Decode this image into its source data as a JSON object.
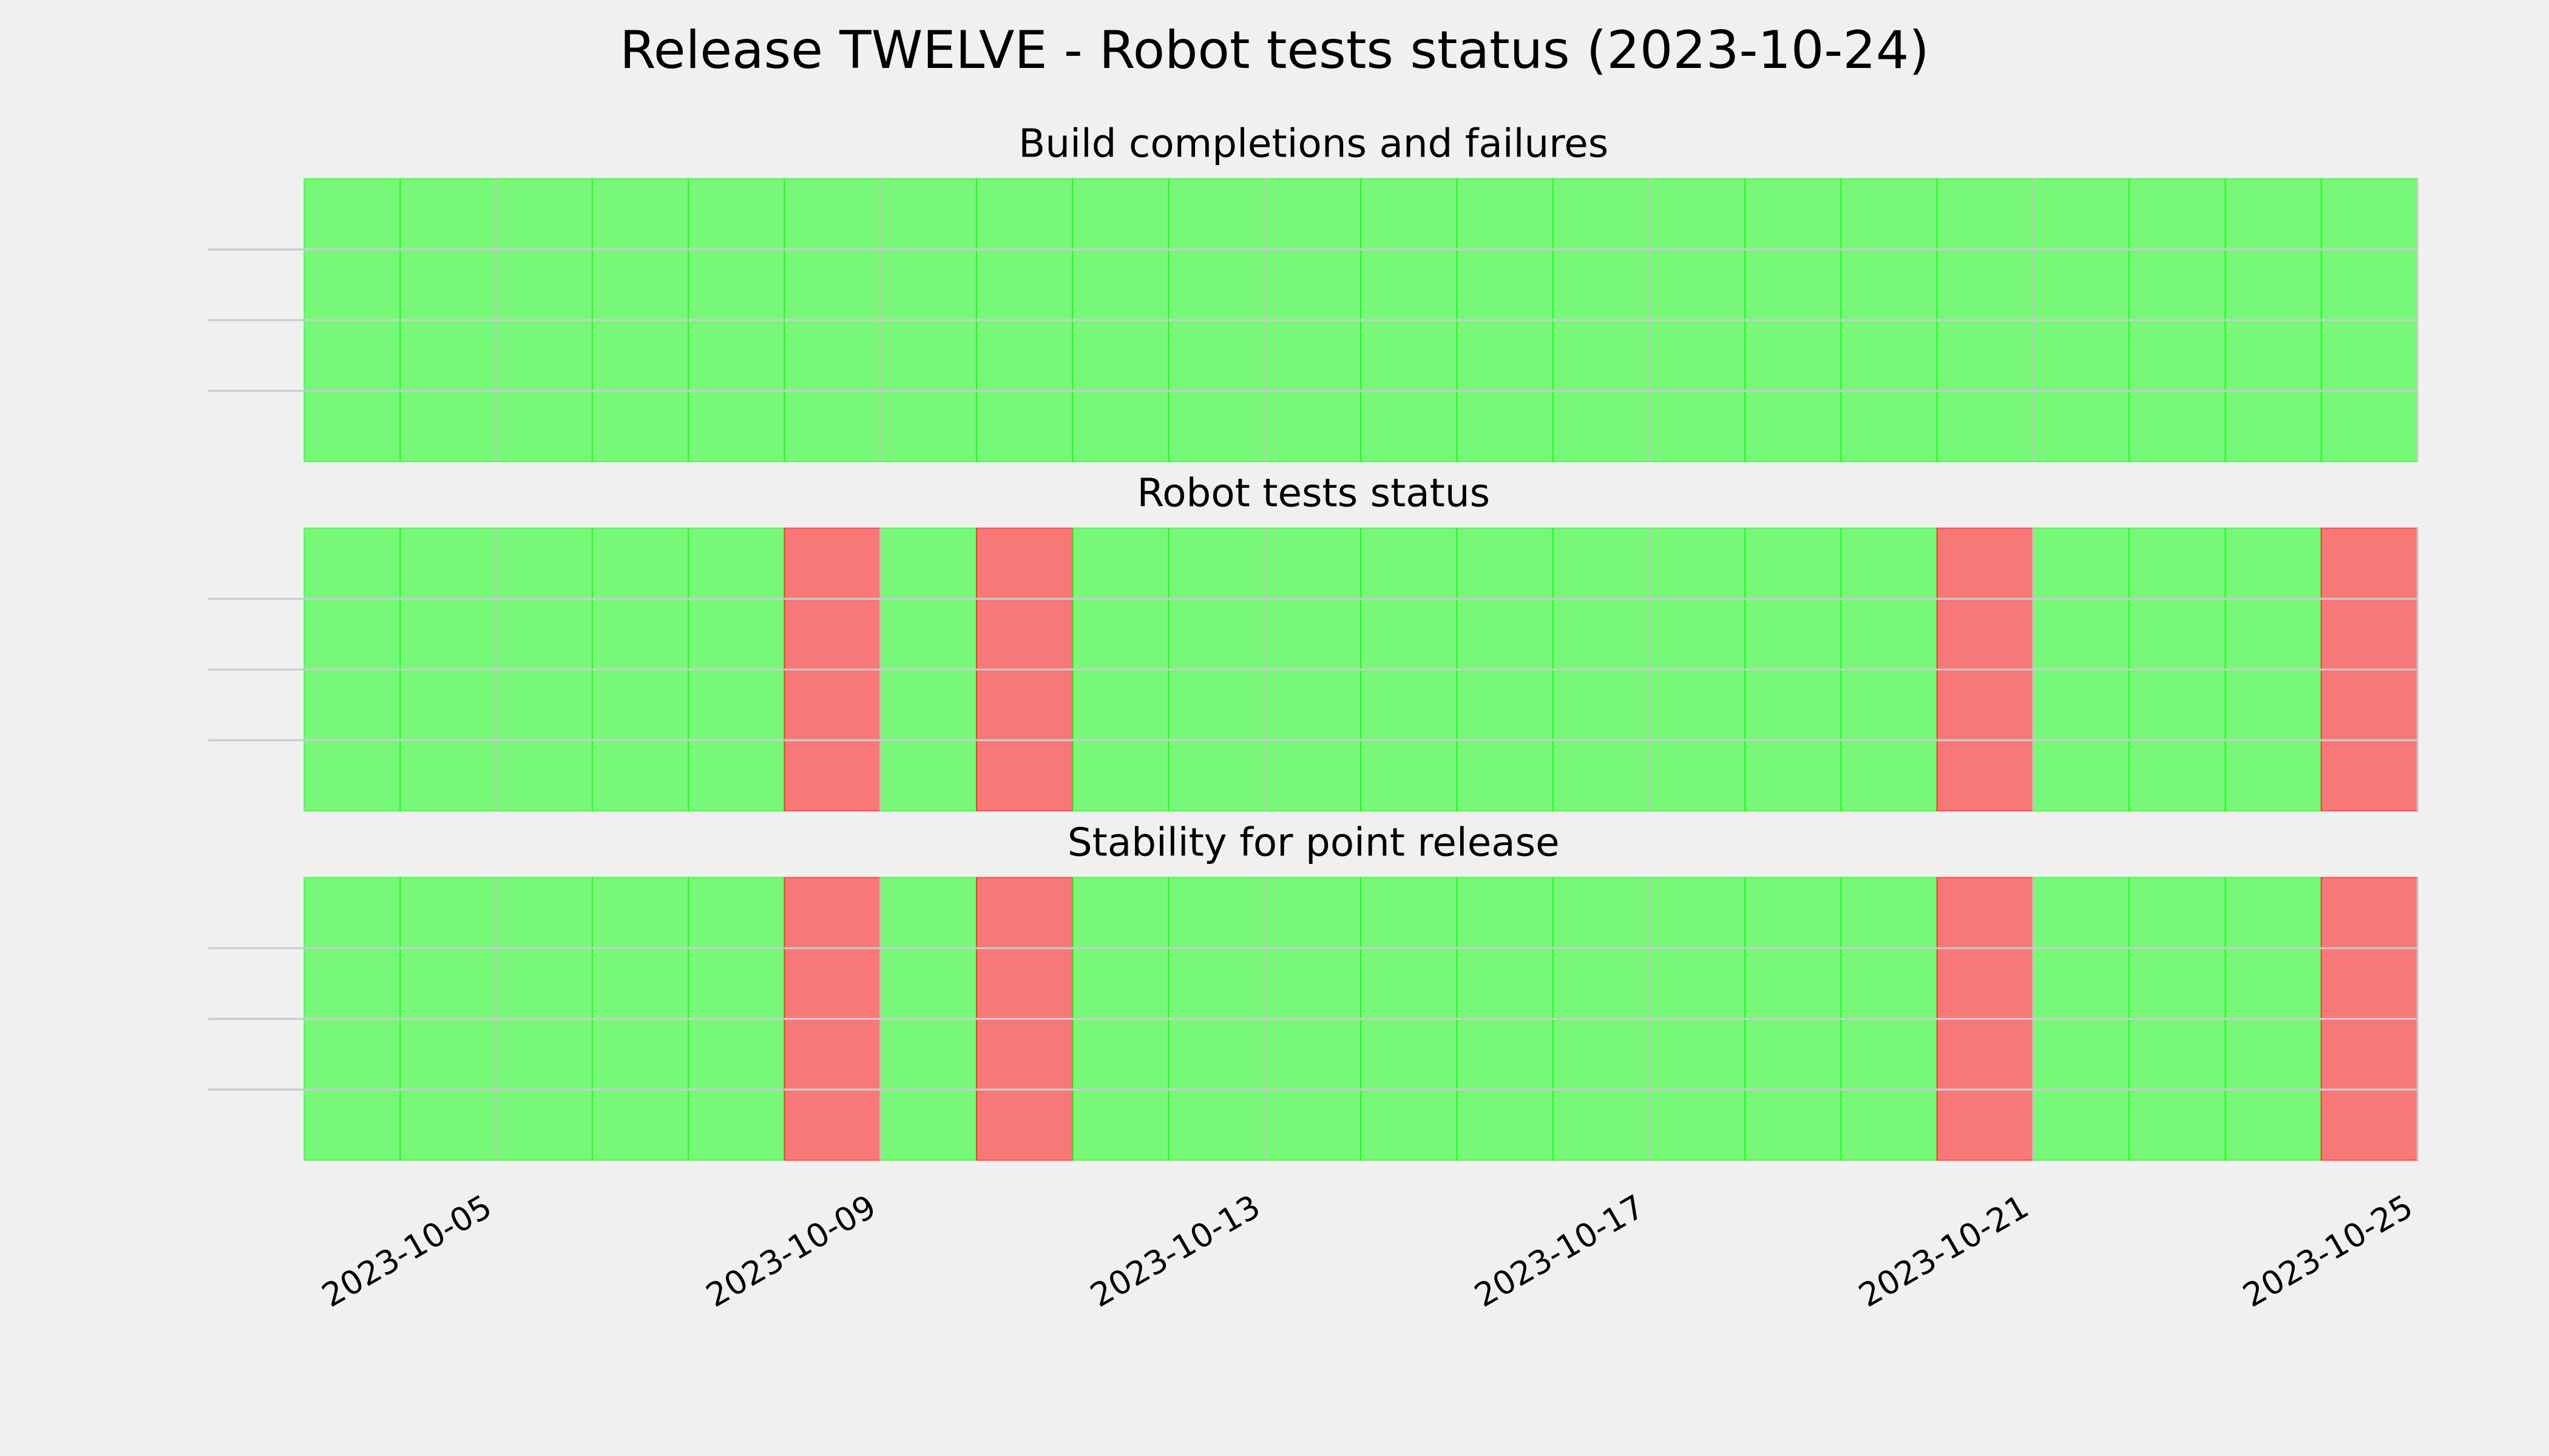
{
  "title": "Release TWELVE - Robot tests status (2023-10-24)",
  "chart_data": [
    {
      "type": "timeline",
      "title": "Build completions and failures",
      "x": [
        "2023-10-03",
        "2023-10-04",
        "2023-10-05",
        "2023-10-06",
        "2023-10-07",
        "2023-10-08",
        "2023-10-09",
        "2023-10-10",
        "2023-10-11",
        "2023-10-12",
        "2023-10-13",
        "2023-10-14",
        "2023-10-15",
        "2023-10-16",
        "2023-10-17",
        "2023-10-18",
        "2023-10-19",
        "2023-10-20",
        "2023-10-21",
        "2023-10-22",
        "2023-10-23",
        "2023-10-24"
      ],
      "values": [
        1,
        1,
        1,
        1,
        1,
        1,
        1,
        1,
        1,
        1,
        1,
        1,
        1,
        1,
        1,
        1,
        1,
        1,
        1,
        1,
        1,
        1
      ],
      "colors": [
        "#00ff00",
        "#00ff00",
        "#00ff00",
        "#00ff00",
        "#00ff00",
        "#00ff00",
        "#00ff00",
        "#00ff00",
        "#00ff00",
        "#00ff00",
        "#00ff00",
        "#00ff00",
        "#00ff00",
        "#00ff00",
        "#00ff00",
        "#00ff00",
        "#00ff00",
        "#00ff00",
        "#00ff00",
        "#00ff00",
        "#00ff00",
        "#00ff00"
      ],
      "alpha": 0.5,
      "xlim": [
        "2023-10-02",
        "2023-10-25"
      ],
      "xticks": [
        "2023-10-05",
        "2023-10-09",
        "2023-10-13",
        "2023-10-17",
        "2023-10-21",
        "2023-10-25"
      ],
      "ylim": [
        0,
        1
      ],
      "yticks": [
        0.25,
        0.5,
        0.75
      ],
      "grid": true
    },
    {
      "type": "timeline",
      "title": "Robot tests status",
      "x": [
        "2023-10-03",
        "2023-10-04",
        "2023-10-05",
        "2023-10-06",
        "2023-10-07",
        "2023-10-08",
        "2023-10-09",
        "2023-10-10",
        "2023-10-11",
        "2023-10-12",
        "2023-10-13",
        "2023-10-14",
        "2023-10-15",
        "2023-10-16",
        "2023-10-17",
        "2023-10-18",
        "2023-10-19",
        "2023-10-20",
        "2023-10-21",
        "2023-10-22",
        "2023-10-23",
        "2023-10-24"
      ],
      "values": [
        1,
        1,
        1,
        1,
        1,
        1,
        1,
        1,
        1,
        1,
        1,
        1,
        1,
        1,
        1,
        1,
        1,
        1,
        1,
        1,
        1,
        1
      ],
      "colors": [
        "#00ff00",
        "#00ff00",
        "#00ff00",
        "#00ff00",
        "#00ff00",
        "#ff0000",
        "#00ff00",
        "#ff0000",
        "#00ff00",
        "#00ff00",
        "#00ff00",
        "#00ff00",
        "#00ff00",
        "#00ff00",
        "#00ff00",
        "#00ff00",
        "#00ff00",
        "#ff0000",
        "#00ff00",
        "#00ff00",
        "#00ff00",
        "#ff0000"
      ],
      "alpha": 0.5,
      "xlim": [
        "2023-10-02",
        "2023-10-25"
      ],
      "xticks": [
        "2023-10-05",
        "2023-10-09",
        "2023-10-13",
        "2023-10-17",
        "2023-10-21",
        "2023-10-25"
      ],
      "ylim": [
        0,
        1
      ],
      "yticks": [
        0.25,
        0.5,
        0.75
      ],
      "grid": true
    },
    {
      "type": "timeline",
      "title": "Stability for point release",
      "x": [
        "2023-10-03",
        "2023-10-04",
        "2023-10-05",
        "2023-10-06",
        "2023-10-07",
        "2023-10-08",
        "2023-10-09",
        "2023-10-10",
        "2023-10-11",
        "2023-10-12",
        "2023-10-13",
        "2023-10-14",
        "2023-10-15",
        "2023-10-16",
        "2023-10-17",
        "2023-10-18",
        "2023-10-19",
        "2023-10-20",
        "2023-10-21",
        "2023-10-22",
        "2023-10-23",
        "2023-10-24"
      ],
      "values": [
        1,
        1,
        1,
        1,
        1,
        1,
        1,
        1,
        1,
        1,
        1,
        1,
        1,
        1,
        1,
        1,
        1,
        1,
        1,
        1,
        1,
        1
      ],
      "colors": [
        "#00ff00",
        "#00ff00",
        "#00ff00",
        "#00ff00",
        "#00ff00",
        "#ff0000",
        "#00ff00",
        "#ff0000",
        "#00ff00",
        "#00ff00",
        "#00ff00",
        "#00ff00",
        "#00ff00",
        "#00ff00",
        "#00ff00",
        "#00ff00",
        "#00ff00",
        "#ff0000",
        "#00ff00",
        "#00ff00",
        "#00ff00",
        "#ff0000"
      ],
      "alpha": 0.5,
      "xlim": [
        "2023-10-02",
        "2023-10-25"
      ],
      "xticks": [
        "2023-10-05",
        "2023-10-09",
        "2023-10-13",
        "2023-10-17",
        "2023-10-21",
        "2023-10-25"
      ],
      "ylim": [
        0,
        1
      ],
      "yticks": [
        0.25,
        0.5,
        0.75
      ],
      "grid": true
    }
  ]
}
